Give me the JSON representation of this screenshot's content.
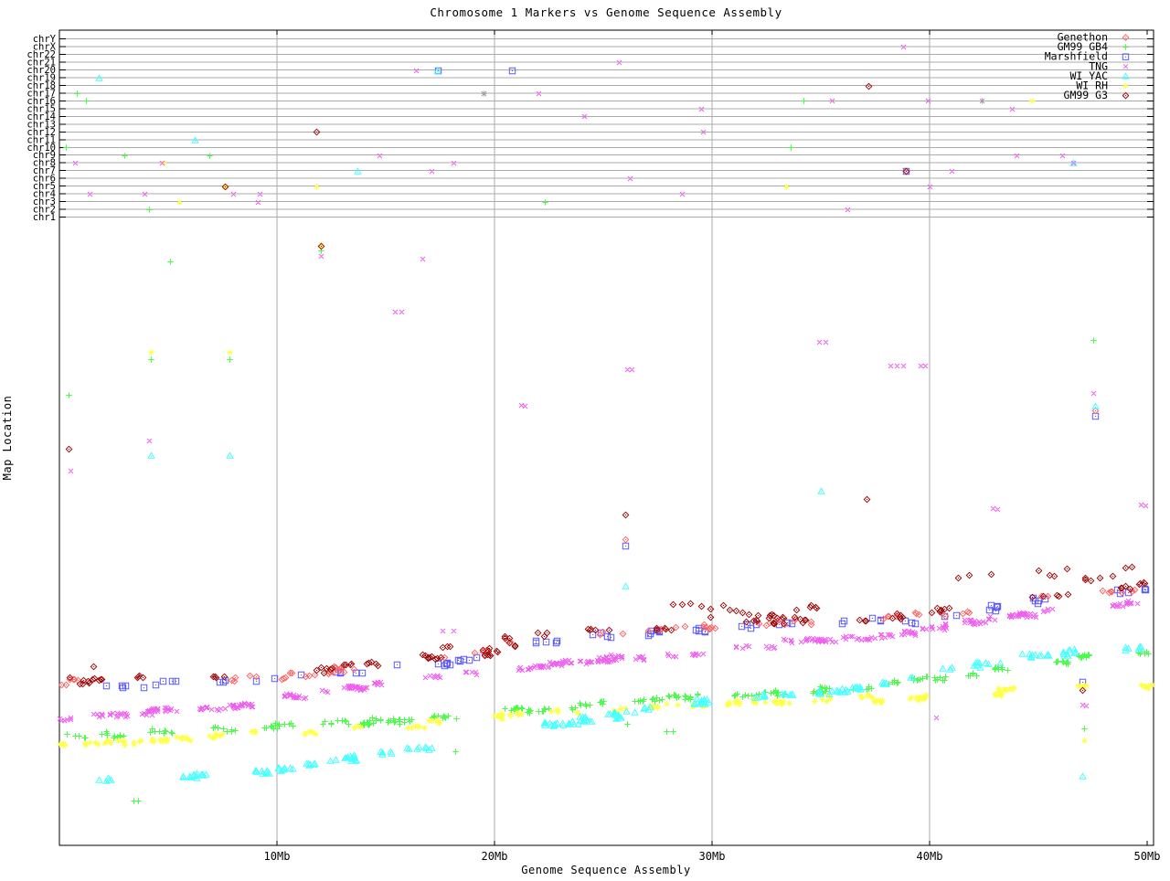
{
  "chart_data": {
    "type": "scatter",
    "title": "Chromosome 1 Markers vs Genome Sequence Assembly",
    "xlabel": "Genome Sequence Assembly",
    "ylabel": "Map Location",
    "x_ticks": [
      {
        "label": "10Mb",
        "mb": 10
      },
      {
        "label": "20Mb",
        "mb": 20
      },
      {
        "label": "30Mb",
        "mb": 30
      },
      {
        "label": "40Mb",
        "mb": 40
      },
      {
        "label": "50Mb",
        "mb": 50
      }
    ],
    "x_range_mb": [
      0,
      50.3
    ],
    "grid": true,
    "legend_position": "top-right",
    "chromosome_rows": [
      "chrY",
      "chrX",
      "chr22",
      "chr21",
      "chr20",
      "chr19",
      "chr18",
      "chr17",
      "chr16",
      "chr15",
      "chr14",
      "chr13",
      "chr12",
      "chr11",
      "chr10",
      "chr9",
      "chr8",
      "chr7",
      "chr6",
      "chr5",
      "chr4",
      "chr3",
      "chr2",
      "chr1"
    ],
    "seed": 1371,
    "draw_order": [
      2,
      0,
      1,
      5,
      4,
      3,
      6
    ],
    "series": [
      {
        "name": "Genethon",
        "color": "#ff6464",
        "marker": "diamond-dot",
        "cluster_count": 42,
        "cluster_size": [
          1,
          3
        ],
        "jitter": 3,
        "x_start_mb": 0,
        "trend": [
          [
            0,
            747
          ],
          [
            3.6,
            745
          ],
          [
            7.8,
            742
          ],
          [
            10,
            739
          ],
          [
            12.8,
            733
          ],
          [
            15.3,
            726
          ],
          [
            17.9,
            720
          ],
          [
            20,
            713
          ],
          [
            21.4,
            698
          ],
          [
            24.2,
            694
          ],
          [
            26.7,
            691
          ],
          [
            30,
            685
          ],
          [
            33,
            681
          ],
          [
            36.8,
            677
          ],
          [
            40,
            673
          ],
          [
            42.6,
            665
          ],
          [
            45.2,
            653
          ],
          [
            47.3,
            649
          ],
          [
            49.9,
            643
          ]
        ],
        "chrom_hits": [
          [
            "chr7",
            38.9
          ]
        ],
        "outliers": [
          [
            26.0,
            590
          ],
          [
            47.6,
            449
          ]
        ]
      },
      {
        "name": "GM99 GB4",
        "color": "#46ff46",
        "marker": "plus",
        "cluster_count": 56,
        "cluster_size": [
          2,
          7
        ],
        "jitter": 3,
        "x_start_mb": 0,
        "trend": [
          [
            0,
            808
          ],
          [
            3.6,
            802
          ],
          [
            7.8,
            797
          ],
          [
            10.3,
            793
          ],
          [
            14.9,
            788
          ],
          [
            20,
            778
          ],
          [
            23.3,
            773
          ],
          [
            26.7,
            768
          ],
          [
            30,
            760
          ],
          [
            33.4,
            756
          ],
          [
            36.8,
            752
          ],
          [
            40,
            741
          ],
          [
            43.5,
            730
          ],
          [
            46.8,
            720
          ],
          [
            50,
            712
          ]
        ],
        "chrom_hits": [
          [
            "chr17",
            0.8
          ],
          [
            "chr16",
            1.2
          ],
          [
            "chr10",
            0.3
          ],
          [
            "chr9",
            3.0
          ],
          [
            "chr9",
            6.9
          ],
          [
            "chr2",
            4.1
          ],
          [
            "chr17",
            19.5
          ],
          [
            "chr3",
            22.3
          ],
          [
            "chr10",
            33.6
          ],
          [
            "chr16",
            34.2
          ],
          [
            "chr16",
            42.4
          ]
        ],
        "outliers": [
          [
            5.1,
            286
          ],
          [
            12.0,
            274
          ],
          [
            0.4,
            432
          ],
          [
            4.2,
            393
          ],
          [
            7.8,
            393
          ],
          [
            47.5,
            372
          ],
          [
            18.2,
            822
          ],
          [
            26.1,
            792
          ],
          [
            27.9,
            800
          ],
          [
            28.2,
            800
          ],
          [
            3.4,
            876
          ],
          [
            3.6,
            876
          ],
          [
            47.1,
            797
          ]
        ]
      },
      {
        "name": "Marshfield",
        "color": "#5a5aff",
        "marker": "square-dot",
        "cluster_count": 42,
        "cluster_size": [
          1,
          3
        ],
        "jitter": 3,
        "x_start_mb": 0,
        "trend": [
          [
            0,
            750
          ],
          [
            3.6,
            748
          ],
          [
            7.8,
            745
          ],
          [
            10,
            742
          ],
          [
            12.8,
            736
          ],
          [
            15.3,
            729
          ],
          [
            17.9,
            723
          ],
          [
            20,
            716
          ],
          [
            21.4,
            701
          ],
          [
            24.2,
            697
          ],
          [
            26.7,
            694
          ],
          [
            30,
            688
          ],
          [
            33,
            684
          ],
          [
            36.8,
            680
          ],
          [
            40,
            676
          ],
          [
            42.6,
            668
          ],
          [
            45.2,
            656
          ],
          [
            47.3,
            652
          ],
          [
            49.9,
            646
          ]
        ],
        "chrom_hits": [
          [
            "chr20",
            17.4
          ],
          [
            "chr20",
            20.8
          ],
          [
            "chr7",
            38.9
          ]
        ],
        "outliers": [
          [
            26.0,
            597
          ],
          [
            47.0,
            746
          ],
          [
            47.6,
            455
          ]
        ]
      },
      {
        "name": "TNG",
        "color": "#ee5fee",
        "marker": "cross",
        "cluster_count": 66,
        "cluster_size": [
          3,
          9
        ],
        "jitter": 2.5,
        "x_start_mb": 0,
        "trend": [
          [
            0,
            787
          ],
          [
            3.6,
            779
          ],
          [
            7.8,
            772
          ],
          [
            10.3,
            763
          ],
          [
            13.7,
            752
          ],
          [
            17,
            741
          ],
          [
            20,
            731
          ],
          [
            23.3,
            726
          ],
          [
            26.3,
            719
          ],
          [
            30,
            712
          ],
          [
            33.4,
            703
          ],
          [
            36.8,
            699
          ],
          [
            40,
            688
          ],
          [
            43.5,
            675
          ],
          [
            46.8,
            664
          ],
          [
            50,
            658
          ]
        ],
        "chrom_hits": [
          [
            "chr8",
            0.7
          ],
          [
            "chr4",
            1.4
          ],
          [
            "chr4",
            3.9
          ],
          [
            "chr8",
            4.7
          ],
          [
            "chr4",
            8.0
          ],
          [
            "chr4",
            9.2
          ],
          [
            "chr3",
            9.1
          ],
          [
            "chr20",
            16.4
          ],
          [
            "chr9",
            14.7
          ],
          [
            "chr7",
            17.1
          ],
          [
            "chr8",
            18.1
          ],
          [
            "chr17",
            19.5
          ],
          [
            "chr17",
            22.0
          ],
          [
            "chr14",
            24.1
          ],
          [
            "chr21",
            25.7
          ],
          [
            "chr6",
            26.2
          ],
          [
            "chr4",
            28.6
          ],
          [
            "chr15",
            29.5
          ],
          [
            "chr12",
            29.6
          ],
          [
            "chr16",
            35.5
          ],
          [
            "chr2",
            36.2
          ],
          [
            "chrX",
            38.8
          ],
          [
            "chr16",
            39.9
          ],
          [
            "chr5",
            40.0
          ],
          [
            "chr7",
            41.0
          ],
          [
            "chr16",
            42.4
          ],
          [
            "chr15",
            43.8
          ],
          [
            "chr9",
            44.0
          ],
          [
            "chr9",
            46.1
          ],
          [
            "chr8",
            46.6
          ]
        ],
        "outliers": [
          [
            12.0,
            280
          ],
          [
            15.4,
            341
          ],
          [
            15.7,
            341
          ],
          [
            0.5,
            515
          ],
          [
            4.1,
            482
          ],
          [
            16.7,
            283
          ],
          [
            26.1,
            404
          ],
          [
            26.3,
            404
          ],
          [
            21.2,
            443
          ],
          [
            21.4,
            444
          ],
          [
            34.9,
            374
          ],
          [
            35.2,
            374
          ],
          [
            38.2,
            400
          ],
          [
            38.5,
            400
          ],
          [
            38.8,
            400
          ],
          [
            39.6,
            400
          ],
          [
            39.8,
            400
          ],
          [
            47.5,
            430
          ],
          [
            47.0,
            771
          ],
          [
            47.2,
            772
          ],
          [
            42.9,
            556
          ],
          [
            43.1,
            557
          ],
          [
            49.7,
            552
          ],
          [
            49.9,
            553
          ],
          [
            17.6,
            690
          ],
          [
            18.1,
            690
          ],
          [
            40.3,
            785
          ]
        ]
      },
      {
        "name": "WI YAC",
        "color": "#49ffff",
        "marker": "triangle-dot",
        "cluster_count": 52,
        "cluster_size": [
          2,
          6
        ],
        "jitter": 2.5,
        "x_start_mb": 1.2,
        "trend": [
          [
            1.2,
            856
          ],
          [
            3.6,
            851
          ],
          [
            6.9,
            847
          ],
          [
            10.3,
            841
          ],
          [
            14.9,
            824
          ],
          [
            18.3,
            813
          ],
          [
            20.8,
            800
          ],
          [
            24.2,
            787
          ],
          [
            26.7,
            776
          ],
          [
            30,
            766
          ],
          [
            33.4,
            760
          ],
          [
            36.8,
            752
          ],
          [
            40,
            737
          ],
          [
            43.5,
            722
          ],
          [
            46.8,
            712
          ],
          [
            50,
            707
          ]
        ],
        "chrom_hits": [
          [
            "chr19",
            1.8
          ],
          [
            "chr11",
            6.2
          ],
          [
            "chr7",
            13.7
          ],
          [
            "chr20",
            17.35
          ],
          [
            "chr8",
            46.6
          ]
        ],
        "outliers": [
          [
            4.2,
            498
          ],
          [
            7.8,
            498
          ],
          [
            26.0,
            641
          ],
          [
            35.0,
            537
          ],
          [
            47.6,
            444
          ],
          [
            47.0,
            849
          ]
        ]
      },
      {
        "name": "WI RH",
        "color": "#ffff4d",
        "marker": "asterisk",
        "cluster_count": 50,
        "cluster_size": [
          2,
          7
        ],
        "jitter": 3,
        "x_start_mb": 0,
        "trend": [
          [
            0,
            817
          ],
          [
            3.6,
            810
          ],
          [
            7.8,
            803
          ],
          [
            10.3,
            800
          ],
          [
            14.9,
            795
          ],
          [
            20,
            786
          ],
          [
            23.3,
            777
          ],
          [
            26.7,
            773
          ],
          [
            30,
            770
          ],
          [
            33.4,
            767
          ],
          [
            36.8,
            765
          ],
          [
            40,
            762
          ],
          [
            43.5,
            756
          ],
          [
            46.8,
            751
          ],
          [
            50,
            748
          ]
        ],
        "chrom_hits": [
          [
            "chr8",
            4.8
          ],
          [
            "chr3",
            5.5
          ],
          [
            "chr5",
            7.6
          ],
          [
            "chr5",
            11.8
          ],
          [
            "chr5",
            33.4
          ],
          [
            "chr16",
            44.7
          ]
        ],
        "outliers": [
          [
            12.0,
            268
          ],
          [
            4.2,
            385
          ],
          [
            7.8,
            385
          ],
          [
            47.1,
            810
          ]
        ]
      },
      {
        "name": "GM99 G3",
        "color": "#9e0e0e",
        "marker": "diamond-dot",
        "cluster_count": 46,
        "cluster_size": [
          1,
          4
        ],
        "jitter": 4,
        "up_bias": 12,
        "x_start_mb": 0,
        "trend": [
          [
            0,
            745
          ],
          [
            3.6,
            743
          ],
          [
            7.8,
            740
          ],
          [
            10,
            737
          ],
          [
            12.8,
            731
          ],
          [
            15.3,
            724
          ],
          [
            17.9,
            718
          ],
          [
            20,
            711
          ],
          [
            21.4,
            696
          ],
          [
            24.2,
            692
          ],
          [
            26.7,
            689
          ],
          [
            30,
            683
          ],
          [
            33,
            679
          ],
          [
            36.8,
            675
          ],
          [
            40,
            671
          ],
          [
            42.6,
            663
          ],
          [
            45.2,
            651
          ],
          [
            47.3,
            647
          ],
          [
            49.9,
            641
          ]
        ],
        "chrom_hits": [
          [
            "chr5",
            7.6
          ],
          [
            "chr12",
            11.8
          ],
          [
            "chr18",
            37.2
          ],
          [
            "chr7",
            38.9
          ]
        ],
        "outliers": [
          [
            0.4,
            491
          ],
          [
            12.0,
            269
          ],
          [
            26.0,
            563
          ],
          [
            37.1,
            546
          ],
          [
            47.0,
            755
          ],
          [
            28.2,
            661
          ],
          [
            28.6,
            661
          ],
          [
            29.0,
            660
          ],
          [
            29.5,
            663
          ],
          [
            29.9,
            666
          ],
          [
            29.9,
            675
          ],
          [
            30.5,
            662
          ],
          [
            30.8,
            667
          ],
          [
            31.1,
            668
          ],
          [
            31.4,
            670
          ],
          [
            31.7,
            672
          ],
          [
            32.1,
            673
          ],
          [
            41.3,
            632
          ],
          [
            41.8,
            629
          ],
          [
            42.8,
            628
          ],
          [
            45.0,
            624
          ],
          [
            45.5,
            629
          ],
          [
            45.7,
            630
          ],
          [
            46.3,
            622
          ],
          [
            47.8,
            632
          ],
          [
            48.4,
            630
          ],
          [
            49.0,
            621
          ],
          [
            49.3,
            620
          ]
        ]
      }
    ]
  }
}
